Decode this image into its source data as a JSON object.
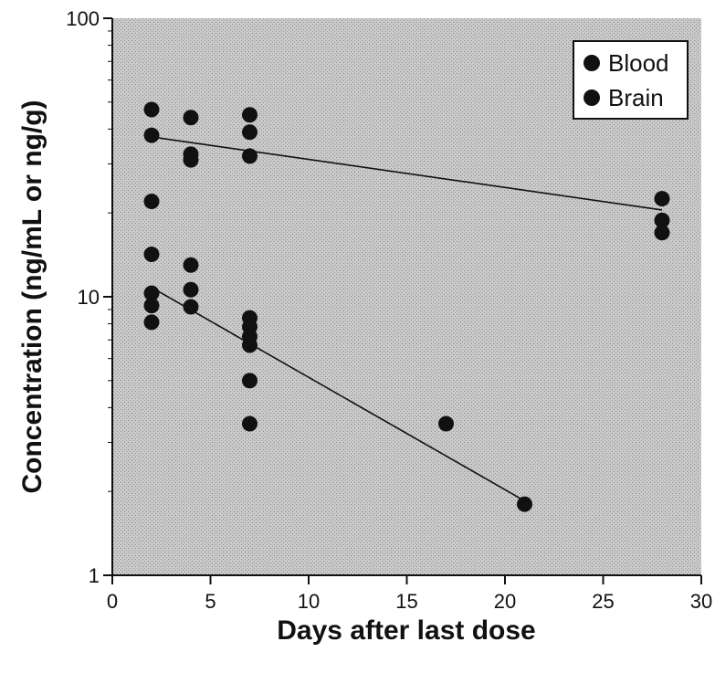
{
  "chart_data": {
    "type": "scatter",
    "title": "",
    "xlabel": "Days after last dose",
    "ylabel": "Concentration (ng/mL or ng/g)",
    "x_range": [
      0,
      30
    ],
    "y_range": [
      1,
      100
    ],
    "y_scale": "log",
    "x_ticks": [
      0,
      5,
      10,
      15,
      20,
      25,
      30
    ],
    "x_tick_labels": [
      "0",
      "5",
      "10",
      "15",
      "20",
      "25",
      "30"
    ],
    "y_ticks": [
      1,
      10,
      100
    ],
    "y_tick_labels": [
      "1",
      "10",
      "100"
    ],
    "grid": false,
    "legend_position": "top-right",
    "series": [
      {
        "name": "Blood",
        "color": "#111111",
        "points": [
          {
            "x": 2,
            "y": 14.2
          },
          {
            "x": 2,
            "y": 10.3
          },
          {
            "x": 2,
            "y": 9.3
          },
          {
            "x": 2,
            "y": 8.1
          },
          {
            "x": 4,
            "y": 13.0
          },
          {
            "x": 4,
            "y": 10.6
          },
          {
            "x": 4,
            "y": 9.2
          },
          {
            "x": 7,
            "y": 8.4
          },
          {
            "x": 7,
            "y": 7.8
          },
          {
            "x": 7,
            "y": 7.2
          },
          {
            "x": 7,
            "y": 6.7
          },
          {
            "x": 7,
            "y": 5.0
          },
          {
            "x": 7,
            "y": 3.5
          },
          {
            "x": 17,
            "y": 3.5
          },
          {
            "x": 21,
            "y": 1.8
          }
        ],
        "trend": {
          "x": [
            2,
            21
          ],
          "y": [
            10.8,
            1.85
          ]
        }
      },
      {
        "name": "Brain",
        "color": "#111111",
        "points": [
          {
            "x": 2,
            "y": 47
          },
          {
            "x": 2,
            "y": 38
          },
          {
            "x": 2,
            "y": 22
          },
          {
            "x": 4,
            "y": 44
          },
          {
            "x": 4,
            "y": 32.5
          },
          {
            "x": 4,
            "y": 31
          },
          {
            "x": 7,
            "y": 45
          },
          {
            "x": 7,
            "y": 39
          },
          {
            "x": 7,
            "y": 32
          },
          {
            "x": 28,
            "y": 22.5
          },
          {
            "x": 28,
            "y": 18.8
          },
          {
            "x": 28,
            "y": 17
          }
        ],
        "trend": {
          "x": [
            2,
            28
          ],
          "y": [
            37.5,
            20.5
          ]
        }
      }
    ]
  }
}
